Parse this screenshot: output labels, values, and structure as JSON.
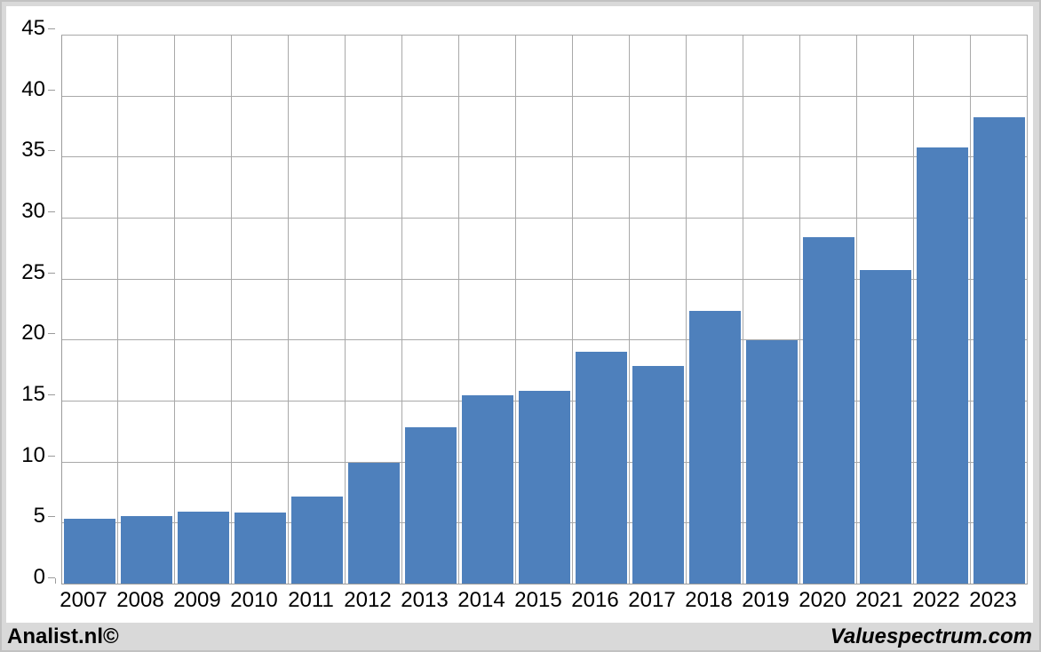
{
  "chart_data": {
    "type": "bar",
    "title": "",
    "xlabel": "",
    "ylabel": "",
    "categories": [
      "2007",
      "2008",
      "2009",
      "2010",
      "2011",
      "2012",
      "2013",
      "2014",
      "2015",
      "2016",
      "2017",
      "2018",
      "2019",
      "2020",
      "2021",
      "2022",
      "2023"
    ],
    "values": [
      5.4,
      5.6,
      6.0,
      5.9,
      7.2,
      10.0,
      12.9,
      15.5,
      15.9,
      19.1,
      17.9,
      22.4,
      20.0,
      28.5,
      25.8,
      35.8,
      38.3
    ],
    "ylim": [
      0,
      45
    ],
    "yticks": [
      0,
      5,
      10,
      15,
      20,
      25,
      30,
      35,
      40,
      45
    ],
    "grid": true,
    "legend": "none",
    "colors": {
      "bar_fill": "#4e80bc",
      "gridline": "#a9a9a9",
      "axis": "#9b9b9b",
      "plot_background": "#ffffff",
      "frame_background": "#d9d9d9",
      "text": "#000000"
    }
  },
  "footer": {
    "left": "Analist.nl©",
    "right": "Valuespectrum.com"
  }
}
